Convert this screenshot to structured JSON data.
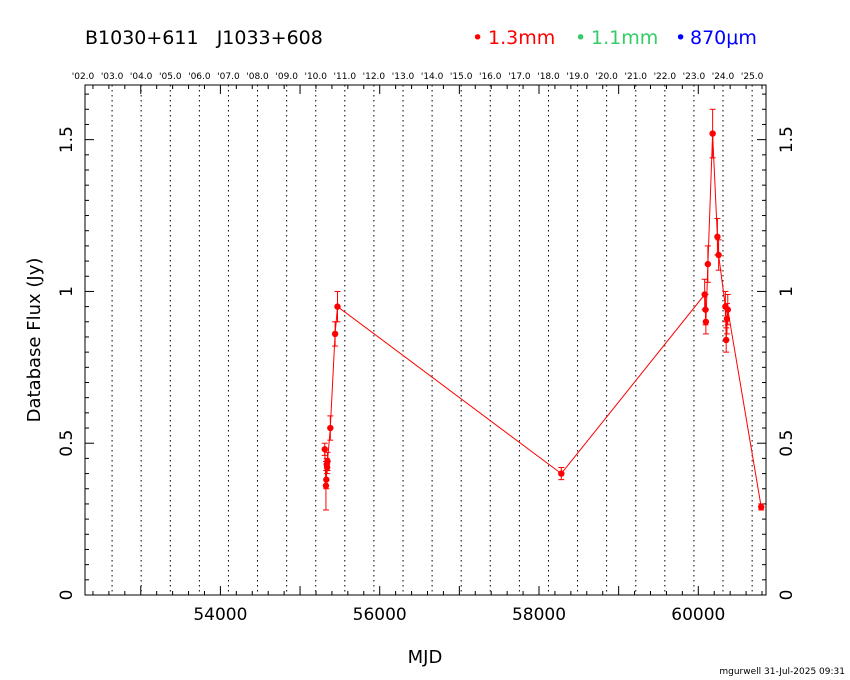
{
  "header": {
    "source_names": "B1030+611   J1033+608",
    "legend": [
      {
        "symbol": "•",
        "label": "1.3mm",
        "color": "#ff0000"
      },
      {
        "symbol": "•",
        "label": "1.1mm",
        "color": "#33cc66"
      },
      {
        "symbol": "•",
        "label": "870μm",
        "color": "#0000ff"
      }
    ]
  },
  "footer": {
    "credit": "mgurwell 31-Jul-2025 09:31"
  },
  "chart_data": {
    "type": "line",
    "xlabel": "MJD",
    "ylabel": "Database Flux (Jy)",
    "xlim": [
      52300,
      60850
    ],
    "ylim": [
      0,
      1.68
    ],
    "x_ticks": [
      54000,
      56000,
      58000,
      60000
    ],
    "y_ticks": [
      0,
      0.5,
      1,
      1.5
    ],
    "y_tick_labels": [
      "0",
      "0.5",
      "1",
      "1.5"
    ],
    "year_axis": {
      "labels": [
        "'02.0",
        "'03.0",
        "'04.0",
        "'05.0",
        "'06.0",
        "'07.0",
        "'08.0",
        "'09.0",
        "'10.0",
        "'11.0",
        "'12.0",
        "'13.0",
        "'14.0",
        "'15.0",
        "'16.0",
        "'17.0",
        "'18.0",
        "'19.0",
        "'20.0",
        "'21.0",
        "'22.0",
        "'23.0",
        "'24.0",
        "'25.0"
      ],
      "mjd": [
        52275,
        52640,
        53005,
        53371,
        53736,
        54101,
        54466,
        54832,
        55197,
        55562,
        55927,
        56293,
        56658,
        57023,
        57388,
        57754,
        58119,
        58484,
        58849,
        59215,
        59580,
        59945,
        60310,
        60676
      ]
    },
    "grid": "vertical dotted at year boundaries",
    "series": [
      {
        "name": "1.3mm",
        "color": "#ff0000",
        "points": [
          {
            "x": 55310,
            "y": 0.48,
            "err": 0.02
          },
          {
            "x": 55325,
            "y": 0.36,
            "err": 0.08
          },
          {
            "x": 55330,
            "y": 0.38,
            "err": 0.03
          },
          {
            "x": 55335,
            "y": 0.43,
            "err": 0.02
          },
          {
            "x": 55340,
            "y": 0.42,
            "err": 0.02
          },
          {
            "x": 55345,
            "y": 0.44,
            "err": 0.03
          },
          {
            "x": 55380,
            "y": 0.55,
            "err": 0.04
          },
          {
            "x": 55440,
            "y": 0.86,
            "err": 0.04
          },
          {
            "x": 55470,
            "y": 0.95,
            "err": 0.05
          },
          {
            "x": 58280,
            "y": 0.4,
            "err": 0.02
          },
          {
            "x": 60080,
            "y": 0.99,
            "err": 0.05
          },
          {
            "x": 60090,
            "y": 0.94,
            "err": 0.05
          },
          {
            "x": 60095,
            "y": 0.9,
            "err": 0.04
          },
          {
            "x": 60120,
            "y": 1.09,
            "err": 0.06
          },
          {
            "x": 60180,
            "y": 1.52,
            "err": 0.08
          },
          {
            "x": 60240,
            "y": 1.18,
            "err": 0.06
          },
          {
            "x": 60255,
            "y": 1.12,
            "err": 0.05
          },
          {
            "x": 60340,
            "y": 0.95,
            "err": 0.05
          },
          {
            "x": 60350,
            "y": 0.84,
            "err": 0.04
          },
          {
            "x": 60360,
            "y": 0.91,
            "err": 0.05
          },
          {
            "x": 60370,
            "y": 0.94,
            "err": 0.05
          },
          {
            "x": 60790,
            "y": 0.29,
            "err": 0.01
          }
        ]
      }
    ]
  }
}
